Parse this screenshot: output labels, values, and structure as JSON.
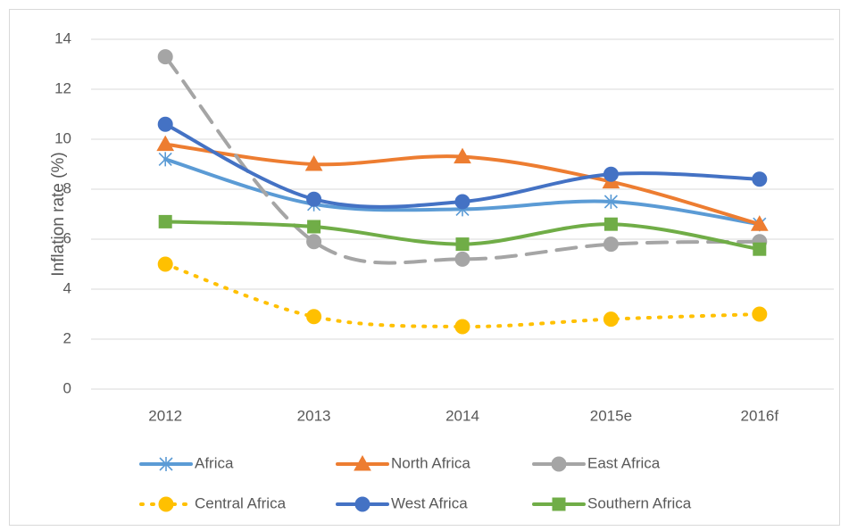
{
  "chart_data": {
    "type": "line",
    "ylabel": "Inflation rate (%)",
    "categories": [
      "2012",
      "2013",
      "2014",
      "2015e",
      "2016f"
    ],
    "ylim": [
      0,
      14
    ],
    "yticks": [
      0,
      2,
      4,
      6,
      8,
      10,
      12,
      14
    ],
    "grid": true,
    "smooth": true,
    "legend": "bottom",
    "series": [
      {
        "name": "Africa",
        "color": "#5b9bd5",
        "marker": "star",
        "dash": "solid",
        "values": [
          9.2,
          7.4,
          7.2,
          7.5,
          6.6
        ]
      },
      {
        "name": "North Africa",
        "color": "#ed7d31",
        "marker": "triangle",
        "dash": "solid",
        "values": [
          9.8,
          9.0,
          9.3,
          8.3,
          6.6
        ]
      },
      {
        "name": "East Africa",
        "color": "#a5a5a5",
        "marker": "circle",
        "dash": "dash",
        "values": [
          13.3,
          5.9,
          5.2,
          5.8,
          5.9
        ]
      },
      {
        "name": "Central Africa",
        "color": "#ffc000",
        "marker": "circle",
        "dash": "dot",
        "values": [
          5.0,
          2.9,
          2.5,
          2.8,
          3.0
        ]
      },
      {
        "name": "West Africa",
        "color": "#4472c4",
        "marker": "circle",
        "dash": "solid",
        "values": [
          10.6,
          7.6,
          7.5,
          8.6,
          8.4
        ]
      },
      {
        "name": "Southern Africa",
        "color": "#70ad47",
        "marker": "square",
        "dash": "solid",
        "values": [
          6.7,
          6.5,
          5.8,
          6.6,
          5.6
        ]
      }
    ]
  }
}
